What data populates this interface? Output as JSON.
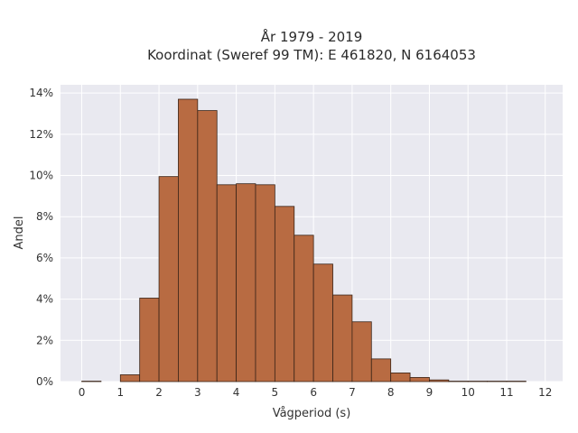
{
  "chart_data": {
    "type": "bar",
    "title": "År 1979 - 2019",
    "subtitle": "Koordinat (Sweref 99 TM): E 461820, N 6164053",
    "xlabel": "Vågperiod (s)",
    "ylabel": "Andel",
    "bin_width": 0.5,
    "bin_starts": [
      0,
      0.5,
      1,
      1.5,
      2,
      2.5,
      3,
      3.5,
      4,
      4.5,
      5,
      5.5,
      6,
      6.5,
      7,
      7.5,
      8,
      8.5,
      9,
      9.5,
      10,
      10.5,
      11,
      11.5
    ],
    "values": [
      0.02,
      0,
      0.33,
      4.05,
      9.95,
      13.7,
      13.15,
      9.55,
      9.6,
      9.55,
      8.5,
      7.1,
      5.7,
      4.2,
      2.9,
      1.1,
      0.42,
      0.2,
      0.08,
      0.02,
      0.02,
      0.02,
      0.02,
      0
    ],
    "value_unit": "%",
    "xlim": [
      -0.55,
      12.45
    ],
    "ylim": [
      0,
      14.4
    ],
    "x_ticks": [
      0,
      1,
      2,
      3,
      4,
      5,
      6,
      7,
      8,
      9,
      10,
      11,
      12
    ],
    "y_ticks": [
      0,
      2,
      4,
      6,
      8,
      10,
      12,
      14
    ],
    "y_tick_labels": [
      "0%",
      "2%",
      "4%",
      "6%",
      "8%",
      "10%",
      "12%",
      "14%"
    ],
    "grid": true,
    "colors": {
      "bar_fill": "#b86b42",
      "bar_edge": "#3a2418",
      "plot_background": "#e9e9f0",
      "grid": "#ffffff"
    }
  }
}
